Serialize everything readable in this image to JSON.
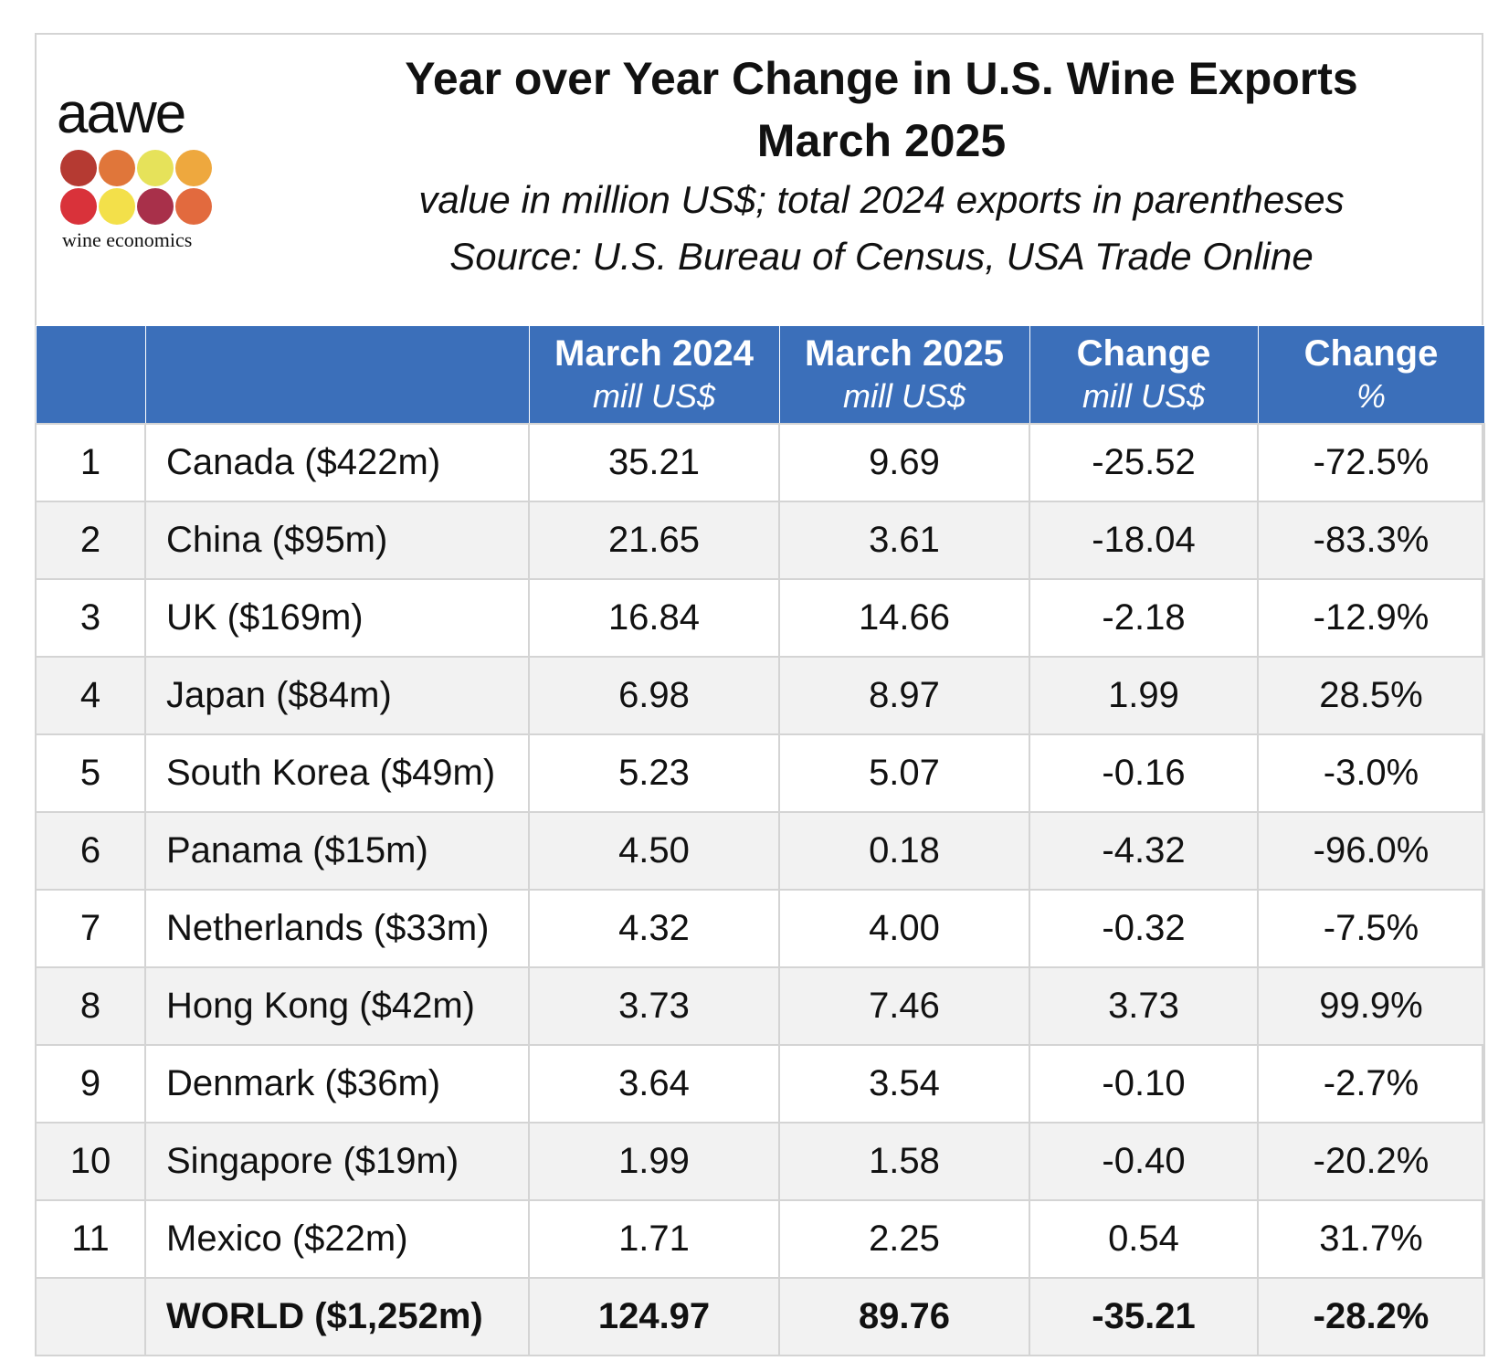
{
  "header": {
    "title_line1": "Year over Year Change in U.S. Wine Exports",
    "title_line2": "March 2025",
    "subtitle": "value in million US$; total 2024 exports in parentheses",
    "source": "Source: U.S. Bureau of Census, USA Trade Online"
  },
  "logo": {
    "word": "aawe",
    "sub": "wine economics",
    "dot_colors": [
      "#b53a32",
      "#e0763a",
      "#e6e25a",
      "#eea83e",
      "#d9323a",
      "#f3e04a",
      "#a8304a",
      "#e26a3e"
    ]
  },
  "table": {
    "header_color": "#3b6fba",
    "columns": [
      {
        "main": "",
        "sub": ""
      },
      {
        "main": "",
        "sub": ""
      },
      {
        "main": "March 2024",
        "sub": "mill US$"
      },
      {
        "main": "March 2025",
        "sub": "mill US$"
      },
      {
        "main": "Change",
        "sub": "mill US$"
      },
      {
        "main": "Change",
        "sub": "%"
      }
    ],
    "rows": [
      {
        "rank": "1",
        "country": "Canada ($422m)",
        "mar2024": "35.21",
        "mar2025": "9.69",
        "change": "-25.52",
        "pct": "-72.5%"
      },
      {
        "rank": "2",
        "country": "China ($95m)",
        "mar2024": "21.65",
        "mar2025": "3.61",
        "change": "-18.04",
        "pct": "-83.3%"
      },
      {
        "rank": "3",
        "country": "UK ($169m)",
        "mar2024": "16.84",
        "mar2025": "14.66",
        "change": "-2.18",
        "pct": "-12.9%"
      },
      {
        "rank": "4",
        "country": "Japan ($84m)",
        "mar2024": "6.98",
        "mar2025": "8.97",
        "change": "1.99",
        "pct": "28.5%"
      },
      {
        "rank": "5",
        "country": "South Korea ($49m)",
        "mar2024": "5.23",
        "mar2025": "5.07",
        "change": "-0.16",
        "pct": "-3.0%"
      },
      {
        "rank": "6",
        "country": "Panama ($15m)",
        "mar2024": "4.50",
        "mar2025": "0.18",
        "change": "-4.32",
        "pct": "-96.0%"
      },
      {
        "rank": "7",
        "country": "Netherlands ($33m)",
        "mar2024": "4.32",
        "mar2025": "4.00",
        "change": "-0.32",
        "pct": "-7.5%"
      },
      {
        "rank": "8",
        "country": "Hong Kong ($42m)",
        "mar2024": "3.73",
        "mar2025": "7.46",
        "change": "3.73",
        "pct": "99.9%"
      },
      {
        "rank": "9",
        "country": "Denmark ($36m)",
        "mar2024": "3.64",
        "mar2025": "3.54",
        "change": "-0.10",
        "pct": "-2.7%"
      },
      {
        "rank": "10",
        "country": "Singapore ($19m)",
        "mar2024": "1.99",
        "mar2025": "1.58",
        "change": "-0.40",
        "pct": "-20.2%"
      },
      {
        "rank": "11",
        "country": "Mexico ($22m)",
        "mar2024": "1.71",
        "mar2025": "2.25",
        "change": "0.54",
        "pct": "31.7%"
      }
    ],
    "total": {
      "rank": "",
      "country": "WORLD ($1,252m)",
      "mar2024": "124.97",
      "mar2025": "89.76",
      "change": "-35.21",
      "pct": "-28.2%"
    }
  }
}
